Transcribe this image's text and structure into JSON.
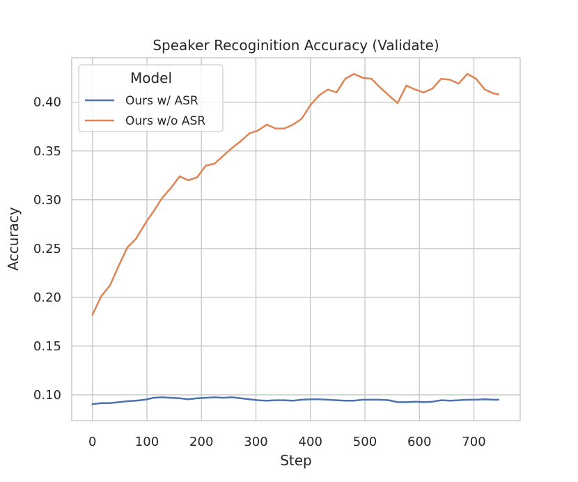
{
  "chart_data": {
    "type": "line",
    "title": "Speaker Recoginition Accuracy (Validate)",
    "xlabel": "Step",
    "ylabel": "Accuracy",
    "xlim": [
      -38,
      785
    ],
    "ylim": [
      0.0735,
      0.4455
    ],
    "xticks": [
      0,
      100,
      200,
      300,
      400,
      500,
      600,
      700
    ],
    "yticks": [
      0.1,
      0.15,
      0.2,
      0.25,
      0.3,
      0.35,
      0.4
    ],
    "ytick_labels": [
      "0.10",
      "0.15",
      "0.20",
      "0.25",
      "0.30",
      "0.35",
      "0.40"
    ],
    "grid": true,
    "legend": {
      "title": "Model",
      "position": "top-left"
    },
    "x": [
      0,
      16,
      32,
      48,
      64,
      80,
      96,
      112,
      128,
      144,
      160,
      176,
      192,
      208,
      224,
      240,
      256,
      272,
      288,
      304,
      320,
      336,
      352,
      368,
      384,
      400,
      416,
      432,
      448,
      464,
      480,
      496,
      512,
      528,
      544,
      560,
      576,
      592,
      608,
      624,
      640,
      656,
      672,
      688,
      704,
      720,
      736,
      745
    ],
    "series": [
      {
        "name": "Ours w/ ASR",
        "color": "#4c72b0",
        "values": [
          0.0905,
          0.0915,
          0.0915,
          0.0925,
          0.0935,
          0.094,
          0.095,
          0.097,
          0.0975,
          0.097,
          0.0965,
          0.0955,
          0.0965,
          0.097,
          0.0975,
          0.097,
          0.0975,
          0.0965,
          0.0955,
          0.0945,
          0.094,
          0.0945,
          0.0945,
          0.094,
          0.095,
          0.0955,
          0.0955,
          0.095,
          0.0945,
          0.094,
          0.094,
          0.095,
          0.095,
          0.095,
          0.0945,
          0.0925,
          0.0925,
          0.093,
          0.0925,
          0.093,
          0.0945,
          0.094,
          0.0945,
          0.095,
          0.095,
          0.0955,
          0.095,
          0.095
        ]
      },
      {
        "name": "Ours w/o ASR",
        "color": "#dd8452",
        "values": [
          0.182,
          0.201,
          0.212,
          0.232,
          0.251,
          0.26,
          0.275,
          0.288,
          0.302,
          0.312,
          0.324,
          0.32,
          0.323,
          0.335,
          0.337,
          0.345,
          0.353,
          0.36,
          0.368,
          0.371,
          0.377,
          0.373,
          0.373,
          0.377,
          0.383,
          0.397,
          0.407,
          0.413,
          0.41,
          0.424,
          0.429,
          0.425,
          0.424,
          0.415,
          0.407,
          0.399,
          0.417,
          0.413,
          0.41,
          0.414,
          0.424,
          0.423,
          0.419,
          0.429,
          0.424,
          0.413,
          0.409,
          0.408
        ]
      }
    ]
  }
}
